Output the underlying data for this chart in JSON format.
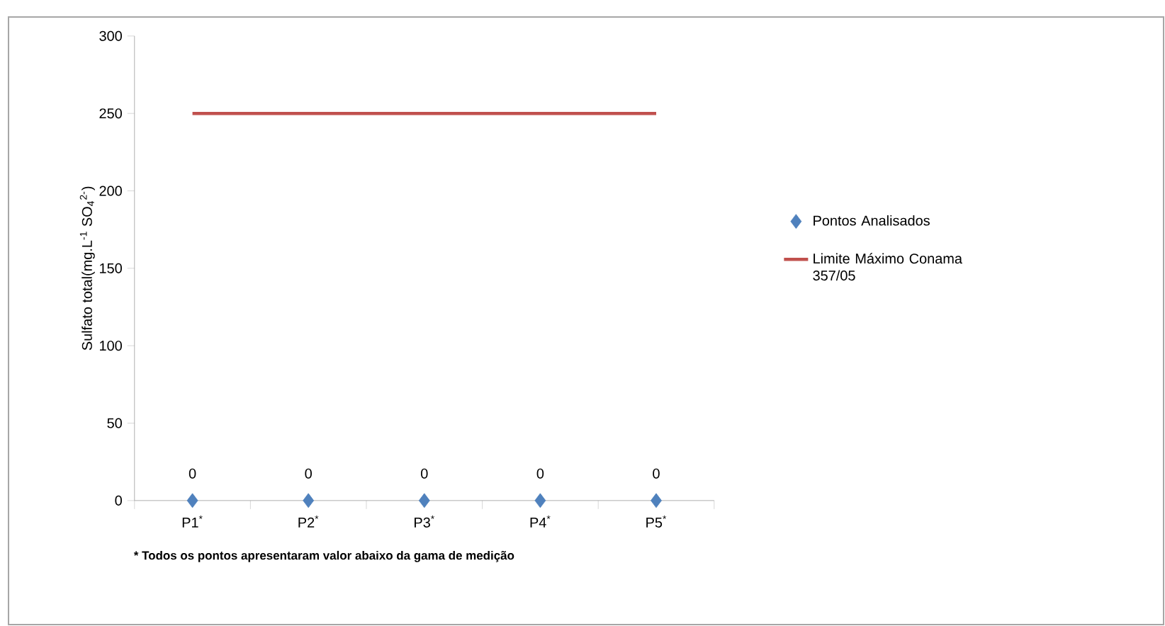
{
  "chart_data": {
    "type": "scatter",
    "ylabel": "Sulfato total(mg.L$^{-1}$ SO$_{4}$$^{2-}$)",
    "categories": [
      "P1$^{*}$",
      "P2$^{*}$",
      "P3$^{*}$",
      "P4$^{*}$",
      "P5$^{*}$"
    ],
    "series": [
      {
        "name": "Pontos Analisados",
        "color": "#4f81bd",
        "marker": "diamond",
        "data_labels": true,
        "values": [
          0,
          0,
          0,
          0,
          0
        ]
      },
      {
        "name": "Limite Máximo Conama 357/05",
        "type": "line",
        "color": "#c0504d",
        "marker": "none",
        "line_style": "solid",
        "values": [
          250,
          250,
          250,
          250,
          250
        ]
      }
    ],
    "ylim": [
      0,
      300
    ],
    "yticks": [
      0,
      50,
      100,
      150,
      200,
      250,
      300
    ],
    "grid": false,
    "legend": "right",
    "annotations": [
      "* Todos os pontos apresentaram valor abaixo da gama de medição"
    ]
  }
}
